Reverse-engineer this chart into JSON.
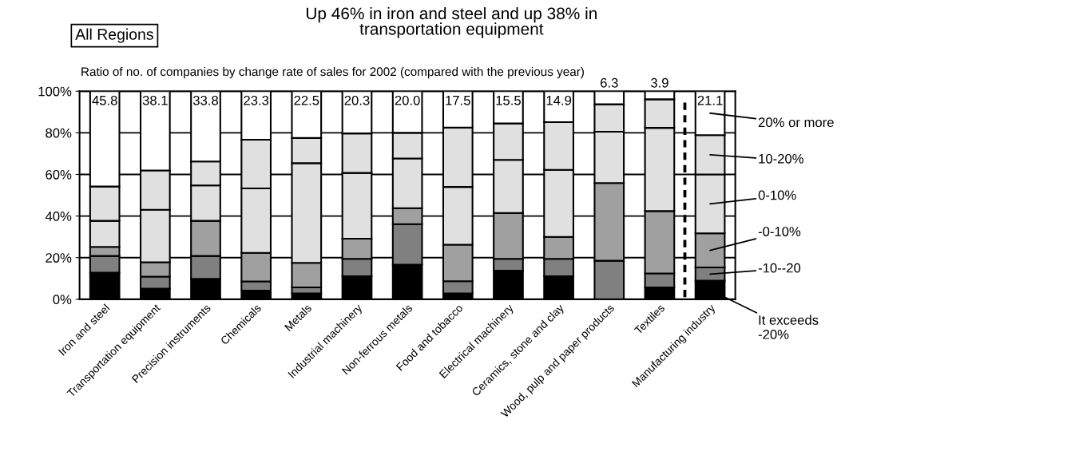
{
  "chart_data": {
    "type": "bar",
    "stacked": true,
    "title": "Up 46% in iron and steel and up 38% in\ntransportation equipment",
    "subtitle": "Ratio of no. of companies by change rate of sales for 2002 (compared with the previous year)",
    "annotations": [
      "All Regions"
    ],
    "categories": [
      "Iron and steel",
      "Transportation equipment",
      "Precision instruments",
      "Chemicals",
      "Metals",
      "Industrial machinery",
      "Non-ferrous metals",
      "Food and tobacco",
      "Electrical machinery",
      "Ceramics, stone and clay",
      "Wood, pulp and paper products",
      "Textiles",
      "Manufacturing industry"
    ],
    "series": [
      {
        "name": "It exceeds\n-20%",
        "color": "#000000",
        "values": [
          12.8,
          5.1,
          9.8,
          4.1,
          2.8,
          11.1,
          16.6,
          2.8,
          13.7,
          11.1,
          0,
          5.7,
          8.9
        ]
      },
      {
        "name": "-10--20",
        "color": "#808080",
        "values": [
          8.0,
          5.8,
          11.0,
          4.5,
          2.9,
          8.3,
          19.5,
          5.9,
          5.7,
          8.3,
          18.5,
          6.7,
          6.4
        ]
      },
      {
        "name": "-0-10%",
        "color": "#a0a0a0",
        "values": [
          4.4,
          6.9,
          16.9,
          13.7,
          11.8,
          9.7,
          7.7,
          17.5,
          22.1,
          10.6,
          37.4,
          30.0,
          16.4
        ]
      },
      {
        "name": "0-10%",
        "color": "#e0e0e0",
        "values": [
          12.5,
          25.2,
          17.0,
          31.0,
          47.9,
          31.6,
          23.9,
          27.8,
          25.5,
          32.2,
          24.6,
          40.0,
          28.3
        ]
      },
      {
        "name": "10-20%",
        "color": "#e0e0e0",
        "values": [
          16.5,
          18.9,
          11.5,
          23.4,
          12.1,
          19.0,
          12.3,
          28.5,
          17.5,
          22.9,
          13.2,
          13.7,
          18.9
        ]
      },
      {
        "name": "20% or more",
        "color": "#ffffff",
        "values": [
          45.8,
          38.1,
          33.8,
          23.3,
          22.5,
          20.3,
          20.0,
          17.5,
          15.5,
          14.9,
          6.3,
          3.9,
          21.1
        ],
        "value_labels": [
          "45.8",
          "38.1",
          "33.8",
          "23.3",
          "22.5",
          "20.3",
          "20.0",
          "17.5",
          "15.5",
          "14.9",
          "6.3",
          "3.9",
          "21.1"
        ]
      }
    ],
    "ylim": [
      0,
      100
    ],
    "yticks": [
      {
        "value": 0,
        "label": "0%"
      },
      {
        "value": 20,
        "label": "20%"
      },
      {
        "value": 40,
        "label": "40%"
      },
      {
        "value": 60,
        "label": "60%"
      },
      {
        "value": 80,
        "label": "80%"
      },
      {
        "value": 100,
        "label": "100%"
      }
    ],
    "grid": "y",
    "legend": "right"
  }
}
